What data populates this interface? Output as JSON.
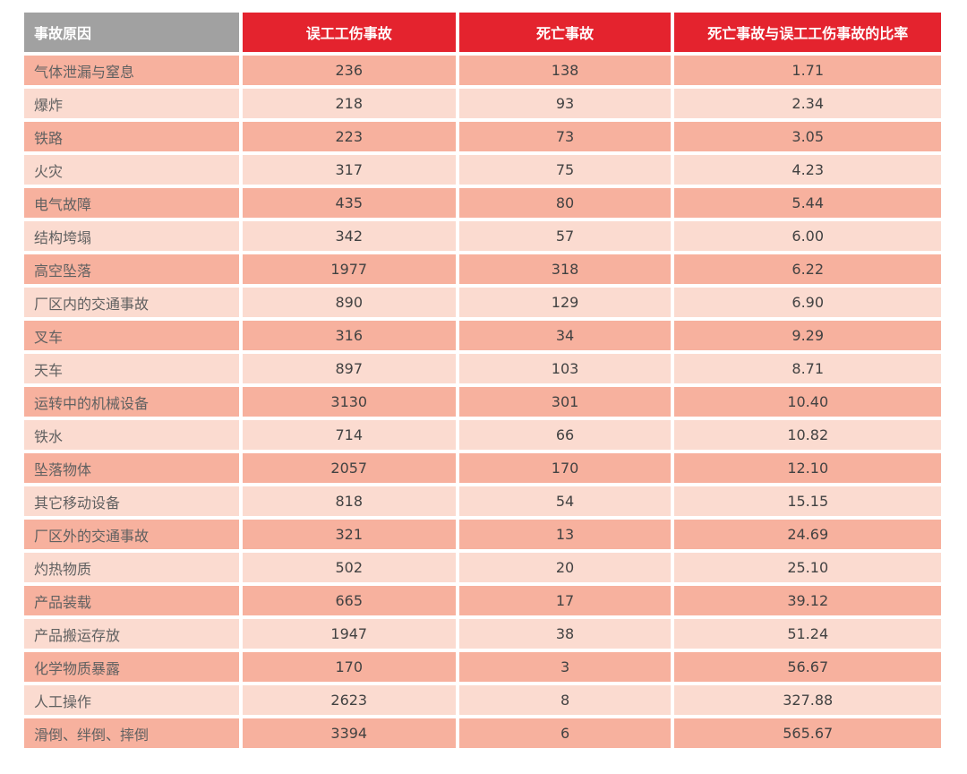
{
  "chart_data": {
    "type": "table",
    "columns": [
      "事故原因",
      "误工工伤事故",
      "死亡事故",
      "死亡事故与误工工伤事故的比率"
    ],
    "rows": [
      [
        "气体泄漏与窒息",
        "236",
        "138",
        "1.71"
      ],
      [
        "爆炸",
        "218",
        "93",
        "2.34"
      ],
      [
        "铁路",
        "223",
        "73",
        "3.05"
      ],
      [
        "火灾",
        "317",
        "75",
        "4.23"
      ],
      [
        "电气故障",
        "435",
        "80",
        "5.44"
      ],
      [
        "结构垮塌",
        "342",
        "57",
        "6.00"
      ],
      [
        "高空坠落",
        "1977",
        "318",
        "6.22"
      ],
      [
        "厂区内的交通事故",
        "890",
        "129",
        "6.90"
      ],
      [
        "叉车",
        "316",
        "34",
        "9.29"
      ],
      [
        "天车",
        "897",
        "103",
        "8.71"
      ],
      [
        "运转中的机械设备",
        "3130",
        "301",
        "10.40"
      ],
      [
        "铁水",
        "714",
        "66",
        "10.82"
      ],
      [
        "坠落物体",
        "2057",
        "170",
        "12.10"
      ],
      [
        "其它移动设备",
        "818",
        "54",
        "15.15"
      ],
      [
        "厂区外的交通事故",
        "321",
        "13",
        "24.69"
      ],
      [
        "灼热物质",
        "502",
        "20",
        "25.10"
      ],
      [
        "产品装载",
        "665",
        "17",
        "39.12"
      ],
      [
        "产品搬运存放",
        "1947",
        "38",
        "51.24"
      ],
      [
        "化学物质暴露",
        "170",
        "3",
        "56.67"
      ],
      [
        "人工操作",
        "2623",
        "8",
        "327.88"
      ],
      [
        "滑倒、绊倒、摔倒",
        "3394",
        "6",
        "565.67"
      ]
    ],
    "layout": {
      "row_striping": "odd rows dark pink, even rows light pink",
      "first_column_align": "left",
      "value_columns_align": "center"
    }
  },
  "colors": {
    "header_red": "#e4232e",
    "header_gray": "#a1a1a1",
    "header_text": "#ffffff",
    "row_dark": "#f7b19e",
    "row_light": "#fbdbd0",
    "label_text": "#616161",
    "num_text": "#424242",
    "page_bg": "#ffffff"
  }
}
